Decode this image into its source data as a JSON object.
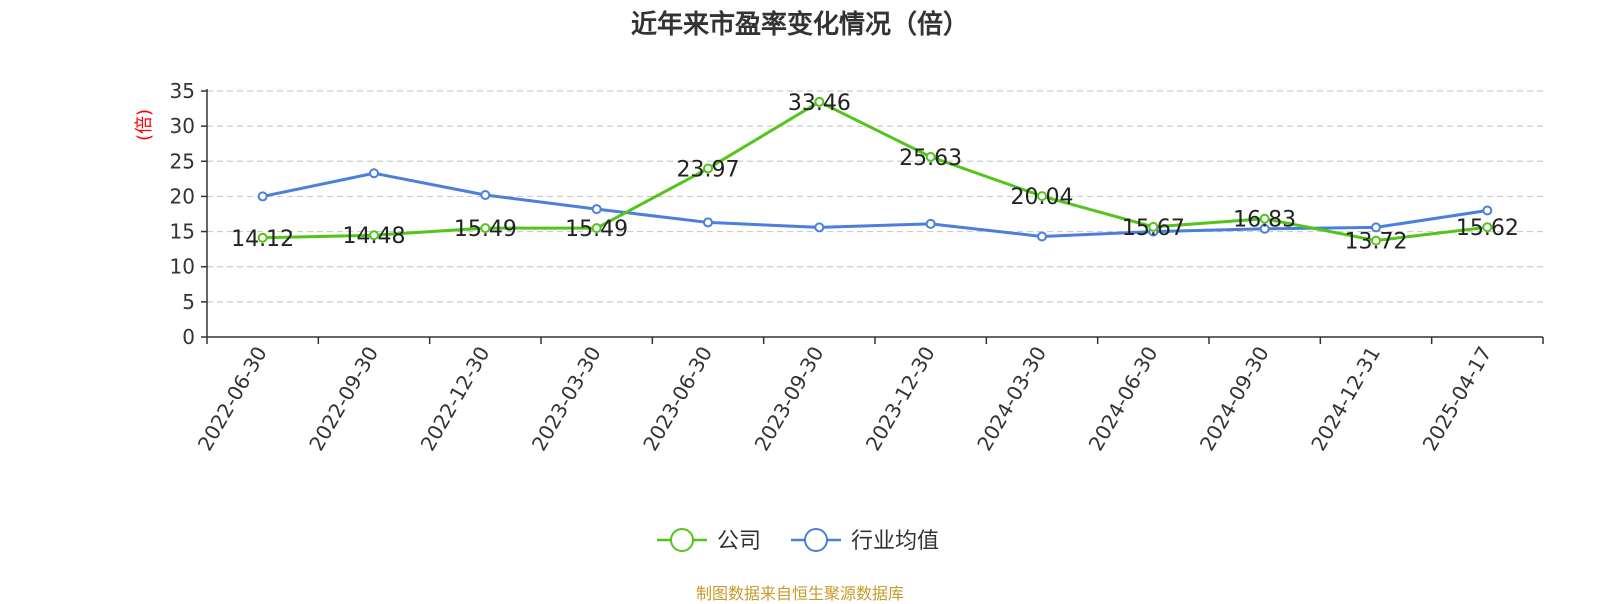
{
  "title": "近年来市盈率变化情况（倍）",
  "source": "制图数据来自恒生聚源数据库",
  "colors": {
    "company": "#52c41a",
    "industry": "#4a7fdc",
    "ylabel": "#ff0000",
    "source": "#c89a2c"
  },
  "chart_data": {
    "type": "line",
    "title": "近年来市盈率变化情况（倍）",
    "ylabel": "(倍)",
    "xlabel": "",
    "ylim": [
      0,
      35
    ],
    "yticks": [
      0,
      5,
      10,
      15,
      20,
      25,
      30,
      35
    ],
    "grid": true,
    "legend_position": "bottom-center",
    "categories": [
      "2022-06-30",
      "2022-09-30",
      "2022-12-30",
      "2023-03-30",
      "2023-06-30",
      "2023-09-30",
      "2023-12-30",
      "2024-03-30",
      "2024-06-30",
      "2024-09-30",
      "2024-12-31",
      "2025-04-17"
    ],
    "series": [
      {
        "name": "公司",
        "color": "#52c41a",
        "labeled": true,
        "values": [
          14.12,
          14.48,
          15.49,
          15.49,
          23.97,
          33.46,
          25.63,
          20.04,
          15.67,
          16.83,
          13.72,
          15.62
        ]
      },
      {
        "name": "行业均值",
        "color": "#4a7fdc",
        "labeled": false,
        "values": [
          20.0,
          23.3,
          20.2,
          18.2,
          16.3,
          15.6,
          16.1,
          14.3,
          15.0,
          15.4,
          15.6,
          18.0
        ]
      }
    ]
  }
}
